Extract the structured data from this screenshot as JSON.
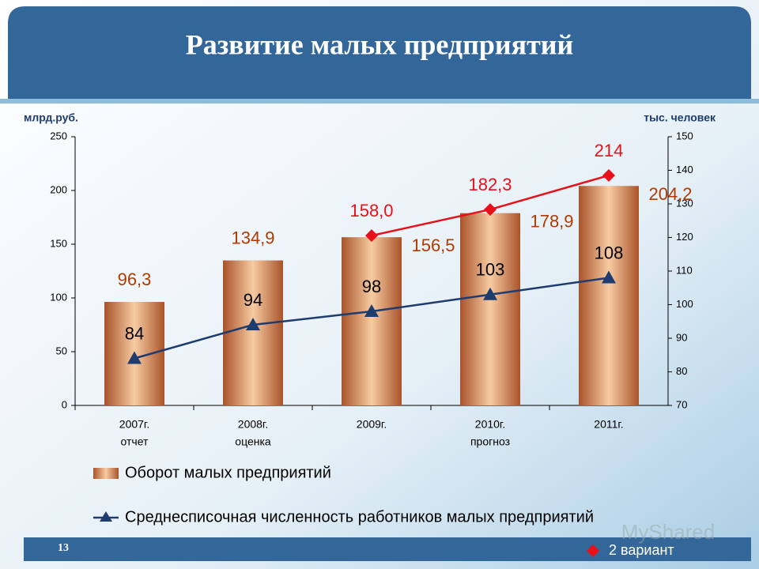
{
  "chart_data": {
    "type": "bar",
    "title": "Развитие малых предприятий",
    "y_label": "млрд.руб.",
    "y2_label": "тыс. человек",
    "categories": [
      "2007г.",
      "2008г.",
      "2009г.",
      "2010г.",
      "2011г."
    ],
    "sublabels": [
      "отчет",
      "оценка",
      null,
      "прогноз",
      null
    ],
    "ylim": [
      0,
      250
    ],
    "yticks": [
      0,
      50,
      100,
      150,
      200,
      250
    ],
    "y2lim": [
      70,
      150
    ],
    "y2ticks": [
      70,
      80,
      90,
      100,
      110,
      120,
      130,
      140,
      150
    ],
    "series": [
      {
        "name": "Оборот малых предприятий",
        "type": "bar",
        "color": "#c8794a",
        "values": [
          96.3,
          134.9,
          156.5,
          178.9,
          204.2
        ],
        "value_labels": [
          "96,3",
          "134,9",
          "156,5",
          "178,9",
          "204,2"
        ]
      },
      {
        "name": "Среднесписочная численность работников малых предприятий",
        "type": "line",
        "axis": "y2",
        "color": "#1f3c6e",
        "values": [
          84,
          94,
          98,
          103,
          108
        ]
      },
      {
        "name": "2 вариант",
        "type": "line",
        "color": "#e8101a",
        "values": [
          null,
          null,
          158.0,
          182.3,
          214
        ],
        "value_labels": [
          null,
          null,
          "158,0",
          "182,3",
          "214"
        ]
      }
    ],
    "page_number": "13",
    "watermark": "MyShared"
  }
}
